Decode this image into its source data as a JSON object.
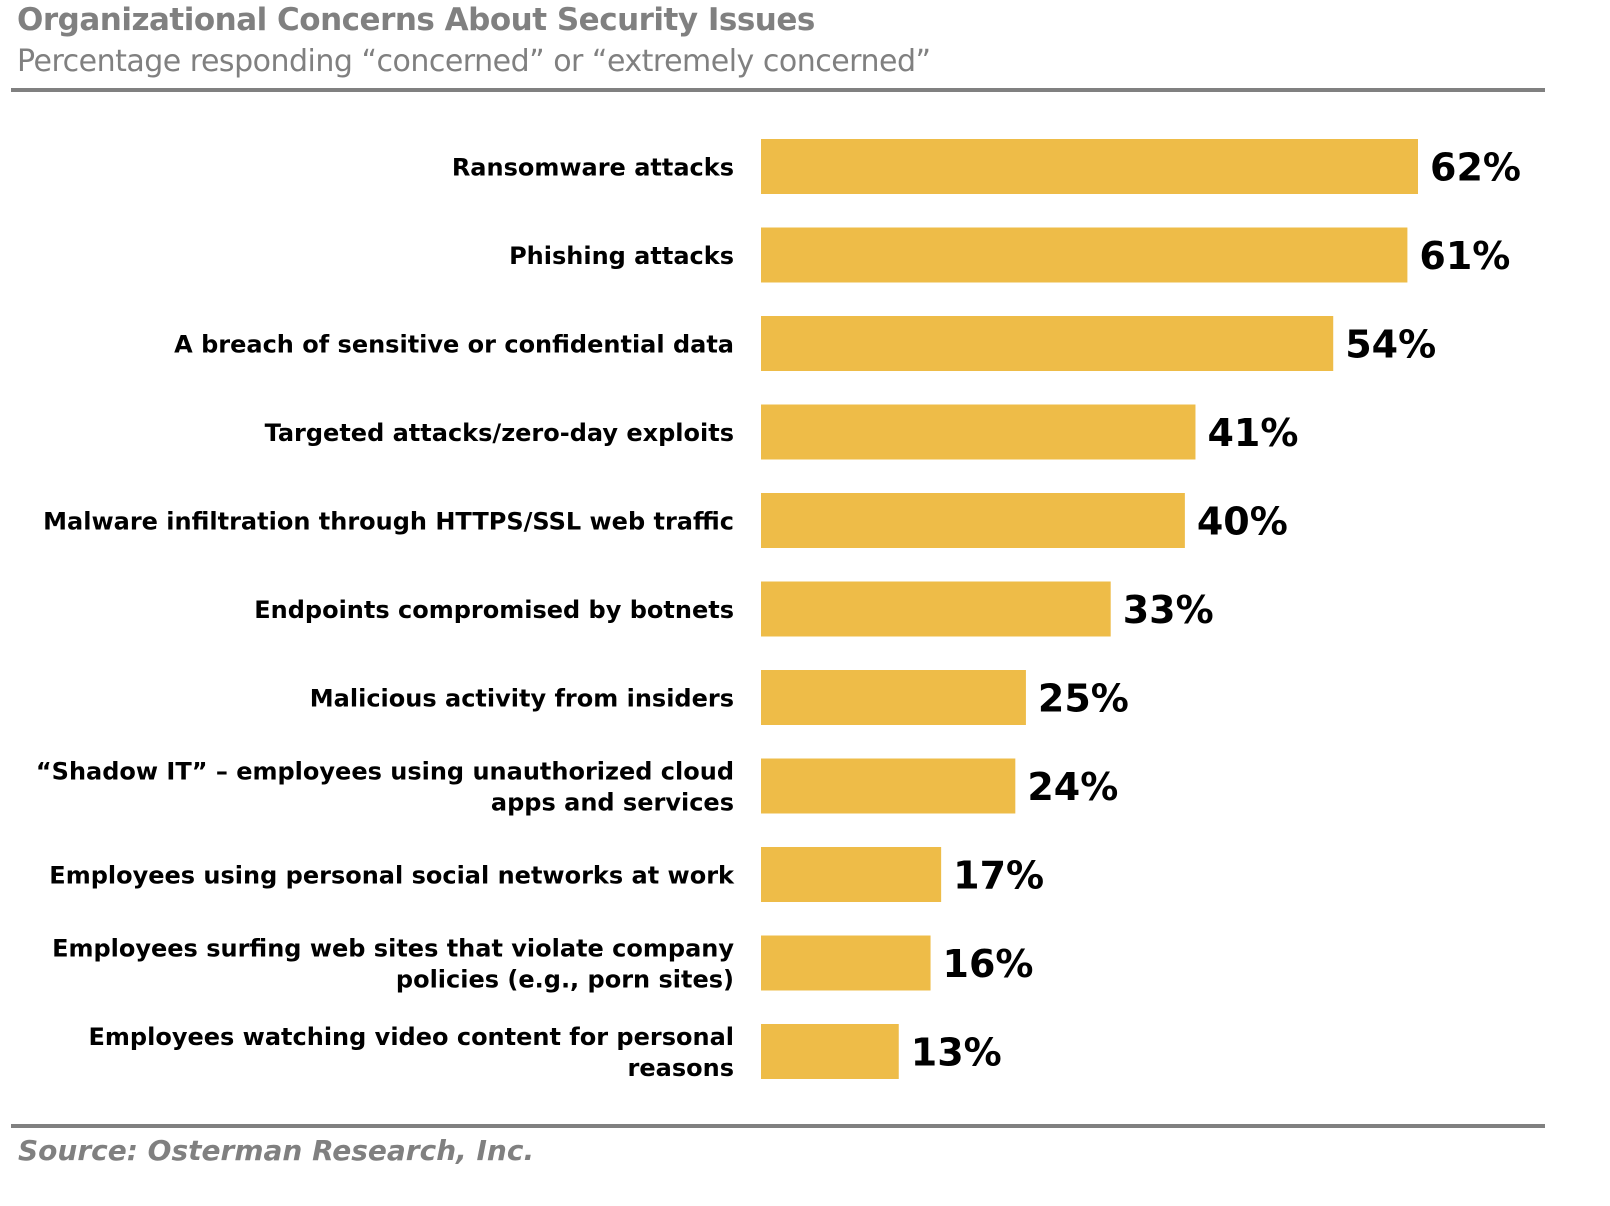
{
  "chart_data": {
    "type": "bar",
    "orientation": "horizontal",
    "title": "Organizational Concerns About Security Issues",
    "subtitle": "Percentage responding “concerned” or “extremely concerned”",
    "source": "Source: Osterman Research, Inc.",
    "categories": [
      "Ransomware attacks",
      "Phishing attacks",
      "A breach of sensitive or confidential data",
      "Targeted attacks/zero-day exploits",
      "Malware infiltration through HTTPS/SSL web traffic",
      "Endpoints compromised by botnets",
      "Malicious activity from insiders",
      "“Shadow IT” – employees using unauthorized cloud apps and services",
      "Employees using personal social networks at work",
      "Employees surfing web sites that violate company policies (e.g., porn sites)",
      "Employees watching video content for personal reasons"
    ],
    "category_lines": [
      [
        "Ransomware attacks"
      ],
      [
        "Phishing attacks"
      ],
      [
        "A breach of sensitive or confidential data"
      ],
      [
        "Targeted attacks/zero-day exploits"
      ],
      [
        "Malware infiltration through HTTPS/SSL web traffic"
      ],
      [
        "Endpoints compromised by botnets"
      ],
      [
        "Malicious activity from insiders"
      ],
      [
        "“Shadow IT” – employees using unauthorized cloud",
        "apps and services"
      ],
      [
        "Employees using personal social networks at work"
      ],
      [
        "Employees surfing web sites that violate company",
        "policies (e.g., porn sites)"
      ],
      [
        "Employees watching video content for personal",
        "reasons"
      ]
    ],
    "values": [
      62,
      61,
      54,
      41,
      40,
      33,
      25,
      24,
      17,
      16,
      13
    ],
    "data_labels": [
      "62%",
      "61%",
      "54%",
      "41%",
      "40%",
      "33%",
      "25%",
      "24%",
      "17%",
      "16%",
      "13%"
    ],
    "unit": "%",
    "xlim": [
      0,
      62
    ],
    "grid": false,
    "legend": "none",
    "bar_color": "#EEBC48",
    "text_color": "#808080"
  }
}
